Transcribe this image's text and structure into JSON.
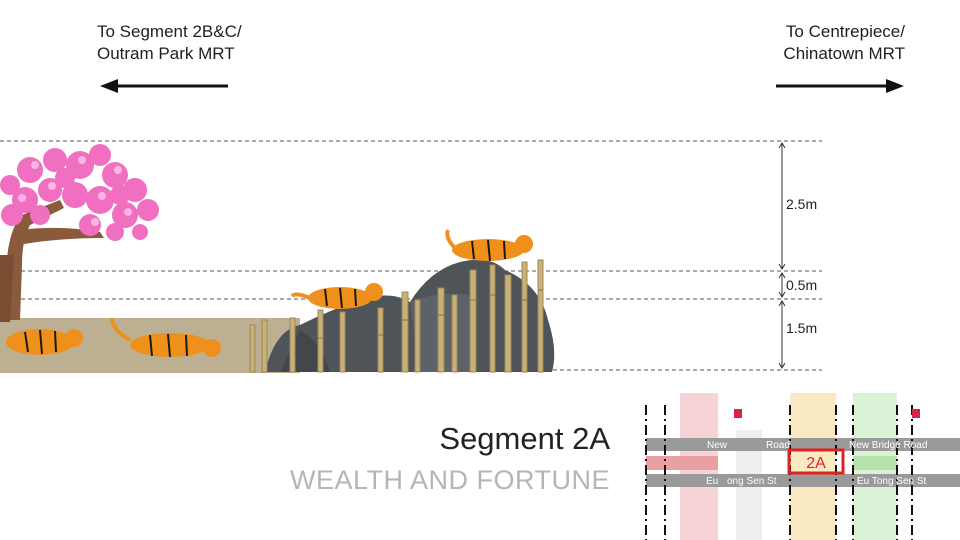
{
  "directions": {
    "left": {
      "line1": "To Segment 2B&C/",
      "line2": "Outram Park MRT"
    },
    "right": {
      "line1": "To Centrepiece/",
      "line2": "Chinatown MRT"
    }
  },
  "dimensions": [
    {
      "label": "2.5m",
      "value_m": 2.5
    },
    {
      "label": "0.5m",
      "value_m": 0.5
    },
    {
      "label": "1.5m",
      "value_m": 1.5
    }
  ],
  "segment": {
    "title": "Segment 2A",
    "theme": "WEALTH AND FORTUNE"
  },
  "keymap": {
    "road_top": "New Bridge Road",
    "road_top_left_fragment": "New",
    "road_top_mid_fragment": "Road",
    "road_bottom": "Eu Tong Sen St",
    "road_bottom_left_fragment": "Eu",
    "road_bottom_mid_fragment": "ong Sen St",
    "highlight_label": "2A",
    "colors": {
      "highlight": "#e0231f",
      "zone_pink": "#f6d4d6",
      "zone_yellow": "#fbe9c4",
      "zone_green": "#dcf2d6"
    }
  },
  "colors": {
    "blossom": "#f06fc0",
    "trunk": "#8a5a3c",
    "ground": "#bdb092",
    "rock": "#4f5458",
    "tiger": "#f0901c",
    "bamboo": "#c8b07a"
  }
}
